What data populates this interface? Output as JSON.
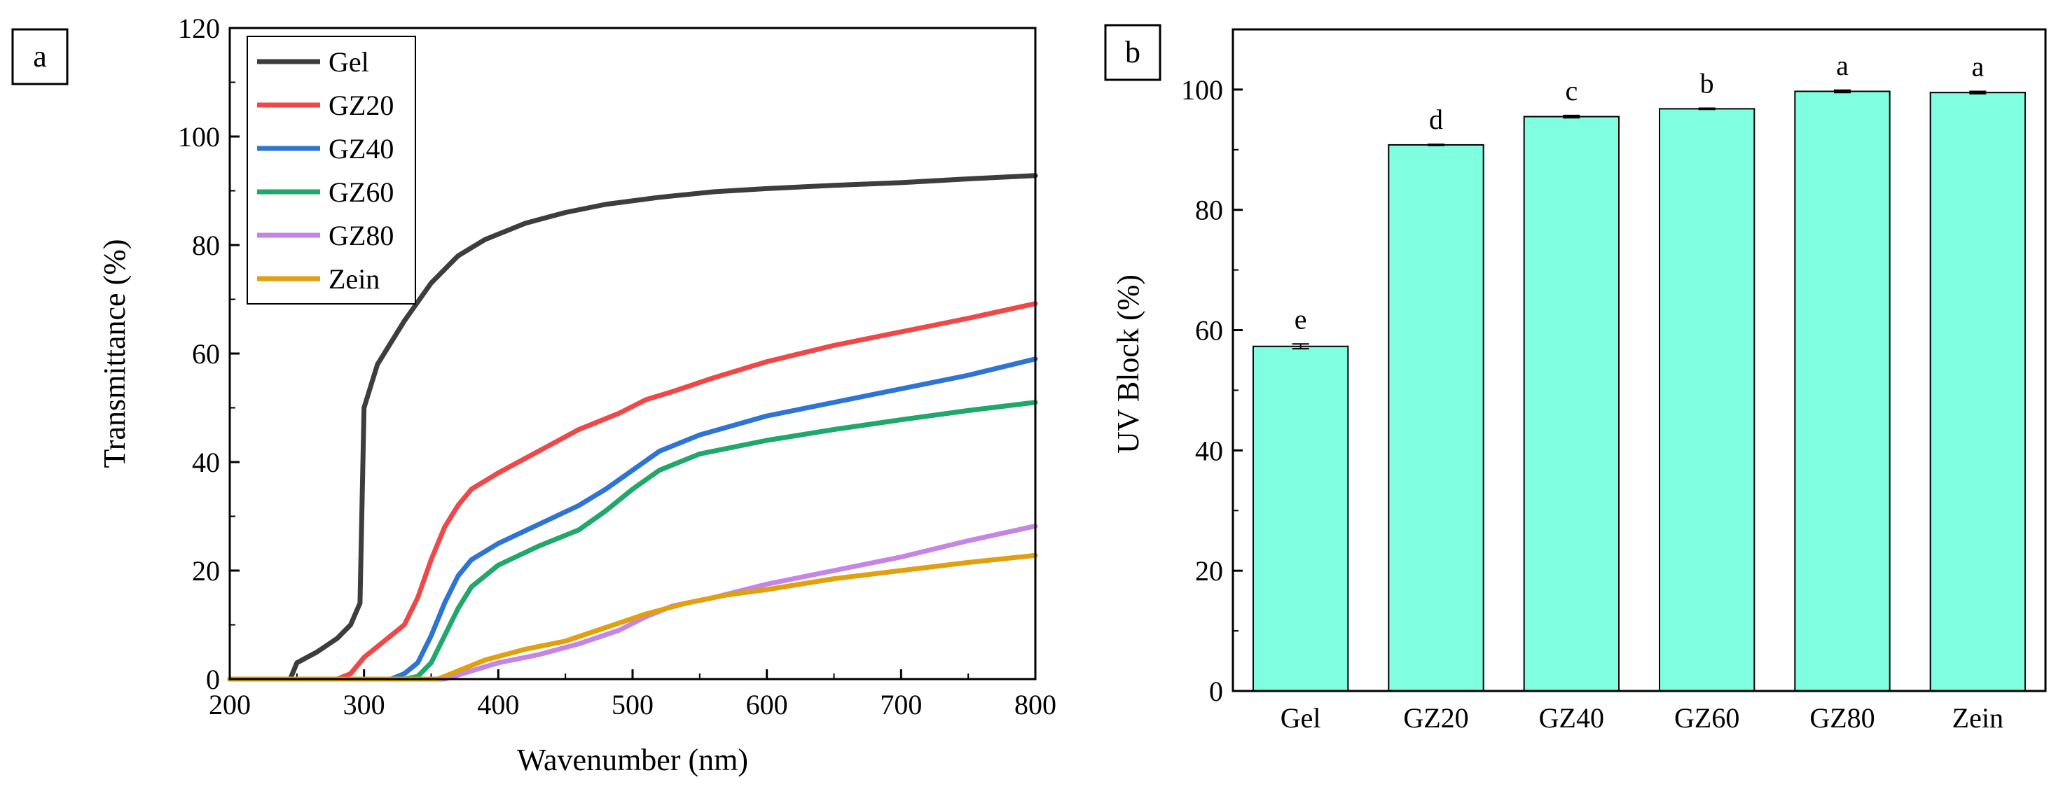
{
  "figure": {
    "panel_a_label": "a",
    "panel_b_label": "b"
  },
  "chart_data": [
    {
      "type": "line",
      "panel": "a",
      "xlabel": "Wavenumber (nm)",
      "ylabel": "Transmittance (%)",
      "xlim": [
        200,
        800
      ],
      "ylim": [
        0,
        120
      ],
      "xticks": [
        200,
        300,
        400,
        500,
        600,
        700,
        800
      ],
      "yticks": [
        0,
        20,
        40,
        60,
        80,
        100,
        120
      ],
      "legend_position": "top-left",
      "series": [
        {
          "name": "Gel",
          "color": "#3d3d3d",
          "x": [
            200,
            245,
            250,
            265,
            280,
            290,
            297,
            300,
            310,
            330,
            350,
            370,
            390,
            420,
            450,
            480,
            520,
            560,
            600,
            650,
            700,
            750,
            800
          ],
          "y": [
            0,
            0,
            3,
            5,
            7.5,
            10,
            14,
            50,
            58,
            66,
            73,
            78,
            81,
            84,
            86,
            87.5,
            88.8,
            89.8,
            90.4,
            91,
            91.5,
            92.2,
            92.8
          ]
        },
        {
          "name": "GZ20",
          "color": "#f04848",
          "x": [
            200,
            280,
            290,
            300,
            310,
            330,
            340,
            350,
            360,
            370,
            380,
            400,
            430,
            460,
            490,
            510,
            530,
            560,
            600,
            650,
            700,
            750,
            800
          ],
          "y": [
            0,
            0,
            1,
            4,
            6,
            10,
            15,
            22,
            28,
            32,
            35,
            38,
            42,
            46,
            49,
            51.5,
            53,
            55.5,
            58.5,
            61.5,
            64,
            66.5,
            69.2
          ]
        },
        {
          "name": "GZ40",
          "color": "#2e74d4",
          "x": [
            200,
            320,
            330,
            340,
            350,
            360,
            370,
            380,
            400,
            430,
            460,
            480,
            500,
            520,
            550,
            600,
            650,
            700,
            750,
            800
          ],
          "y": [
            0,
            0,
            1,
            3,
            8,
            14,
            19,
            22,
            25,
            28.5,
            32,
            35,
            38.5,
            42,
            45,
            48.5,
            51,
            53.5,
            56,
            59
          ]
        },
        {
          "name": "GZ60",
          "color": "#1fa86a",
          "x": [
            200,
            330,
            340,
            350,
            360,
            370,
            380,
            400,
            430,
            460,
            480,
            500,
            520,
            550,
            600,
            650,
            700,
            750,
            800
          ],
          "y": [
            0,
            0,
            0.5,
            3,
            8,
            13,
            17,
            21,
            24.5,
            27.5,
            31,
            35,
            38.5,
            41.5,
            44,
            46,
            47.8,
            49.5,
            51
          ]
        },
        {
          "name": "GZ80",
          "color": "#c585e6",
          "x": [
            200,
            360,
            380,
            400,
            430,
            460,
            490,
            510,
            530,
            560,
            600,
            650,
            700,
            750,
            800
          ],
          "y": [
            0,
            0,
            1.5,
            3,
            4.5,
            6.5,
            9,
            11.5,
            13.5,
            15,
            17.5,
            20,
            22.5,
            25.5,
            28.2
          ]
        },
        {
          "name": "Zein",
          "color": "#e0a010",
          "x": [
            200,
            355,
            370,
            390,
            420,
            450,
            480,
            510,
            540,
            570,
            600,
            650,
            700,
            750,
            800
          ],
          "y": [
            0,
            0,
            1.5,
            3.5,
            5.5,
            7,
            9.5,
            12,
            14,
            15.5,
            16.5,
            18.5,
            20,
            21.5,
            22.8
          ]
        }
      ]
    },
    {
      "type": "bar",
      "panel": "b",
      "xlabel": "",
      "ylabel": "UV Block (%)",
      "ylim": [
        0,
        110
      ],
      "yticks": [
        0,
        20,
        40,
        60,
        80,
        100
      ],
      "bar_color": "#7fffe0",
      "categories": [
        "Gel",
        "GZ20",
        "GZ40",
        "GZ60",
        "GZ80",
        "Zein"
      ],
      "values": [
        57.3,
        90.8,
        95.5,
        96.8,
        99.7,
        99.5
      ],
      "errors": [
        0.4,
        0.1,
        0.2,
        0.1,
        0.2,
        0.2
      ],
      "significance": [
        "e",
        "d",
        "c",
        "b",
        "a",
        "a"
      ]
    }
  ]
}
